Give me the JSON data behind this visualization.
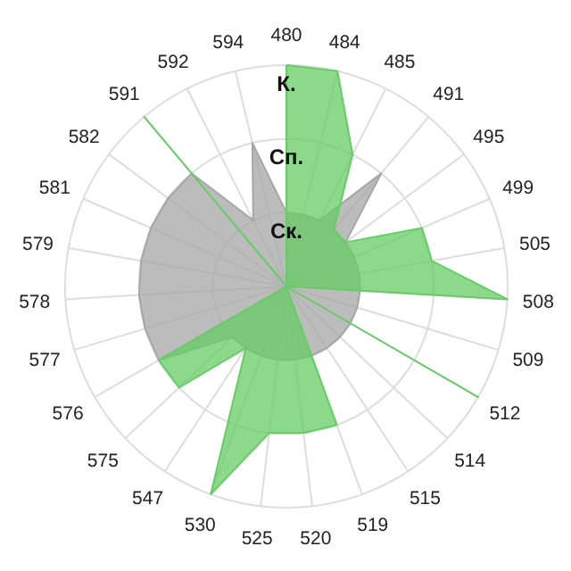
{
  "chart_data": {
    "type": "radar",
    "categories": [
      "480",
      "484",
      "485",
      "491",
      "495",
      "499",
      "505",
      "508",
      "509",
      "512",
      "514",
      "515",
      "519",
      "520",
      "525",
      "530",
      "547",
      "575",
      "576",
      "577",
      "578",
      "579",
      "581",
      "582",
      "591",
      "592",
      "594"
    ],
    "series": [
      {
        "color": "#a6a6a6",
        "values": [
          1,
          1,
          1,
          2,
          1,
          1,
          1,
          1,
          1,
          1,
          1,
          1,
          1,
          1,
          1,
          1,
          1,
          1,
          2,
          2,
          2,
          2,
          2,
          2,
          2,
          1,
          2
        ]
      },
      {
        "color": "#66cc66",
        "values": [
          3,
          3,
          2,
          1,
          1,
          2,
          2,
          3,
          0,
          3,
          0,
          0,
          2,
          2,
          2,
          3,
          1,
          2,
          2,
          0,
          0,
          0,
          0,
          0,
          3,
          0,
          0
        ]
      }
    ],
    "ylim": [
      0,
      3
    ],
    "yticks": [
      {
        "value": 1,
        "label": "Ск."
      },
      {
        "value": 2,
        "label": "Сп."
      },
      {
        "value": 3,
        "label": "К."
      }
    ],
    "grid": true
  }
}
